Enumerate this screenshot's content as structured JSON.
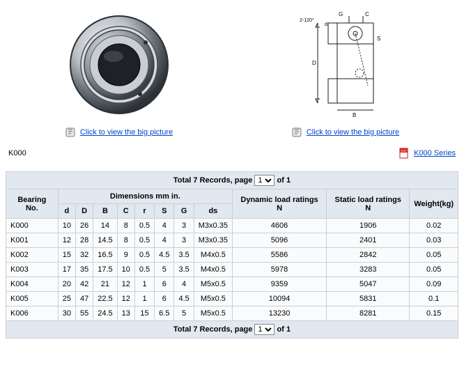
{
  "images": {
    "click_label": "Click to view the big picture"
  },
  "series": {
    "label": "K000",
    "pdf_link": "K000 Series"
  },
  "pager": {
    "prefix": "Total 7 Records, page ",
    "selected": "1",
    "suffix": " of 1"
  },
  "table": {
    "headers": {
      "bearing_no": "Bearing No.",
      "dims": "Dimensions mm in.",
      "d_lower": "d",
      "d_upper": "D",
      "b": "B",
      "c": "C",
      "r": "r",
      "s": "S",
      "g": "G",
      "ds": "ds",
      "dynamic": "Dynamic load ratings N",
      "static": "Static load ratings N",
      "weight": "Weight(kg)"
    },
    "rows": [
      {
        "bn": "K000",
        "d": "10",
        "D": "26",
        "B": "14",
        "C": "8",
        "r": "0.5",
        "S": "4",
        "G": "3",
        "ds": "M3x0.35",
        "dyn": "4606",
        "stat": "1906",
        "w": "0.02"
      },
      {
        "bn": "K001",
        "d": "12",
        "D": "28",
        "B": "14.5",
        "C": "8",
        "r": "0.5",
        "S": "4",
        "G": "3",
        "ds": "M3x0.35",
        "dyn": "5096",
        "stat": "2401",
        "w": "0.03"
      },
      {
        "bn": "K002",
        "d": "15",
        "D": "32",
        "B": "16.5",
        "C": "9",
        "r": "0.5",
        "S": "4.5",
        "G": "3.5",
        "ds": "M4x0.5",
        "dyn": "5586",
        "stat": "2842",
        "w": "0.05"
      },
      {
        "bn": "K003",
        "d": "17",
        "D": "35",
        "B": "17.5",
        "C": "10",
        "r": "0.5",
        "S": "5",
        "G": "3.5",
        "ds": "M4x0.5",
        "dyn": "5978",
        "stat": "3283",
        "w": "0.05"
      },
      {
        "bn": "K004",
        "d": "20",
        "D": "42",
        "B": "21",
        "C": "12",
        "r": "1",
        "S": "6",
        "G": "4",
        "ds": "M5x0.5",
        "dyn": "9359",
        "stat": "5047",
        "w": "0.09"
      },
      {
        "bn": "K005",
        "d": "25",
        "D": "47",
        "B": "22.5",
        "C": "12",
        "r": "1",
        "S": "6",
        "G": "4.5",
        "ds": "M5x0.5",
        "dyn": "10094",
        "stat": "5831",
        "w": "0.1"
      },
      {
        "bn": "K006",
        "d": "30",
        "D": "55",
        "B": "24.5",
        "C": "13",
        "r": "15",
        "S": "6.5",
        "G": "5",
        "ds": "M5x0.5",
        "dyn": "13230",
        "stat": "8281",
        "w": "0.15"
      }
    ]
  }
}
